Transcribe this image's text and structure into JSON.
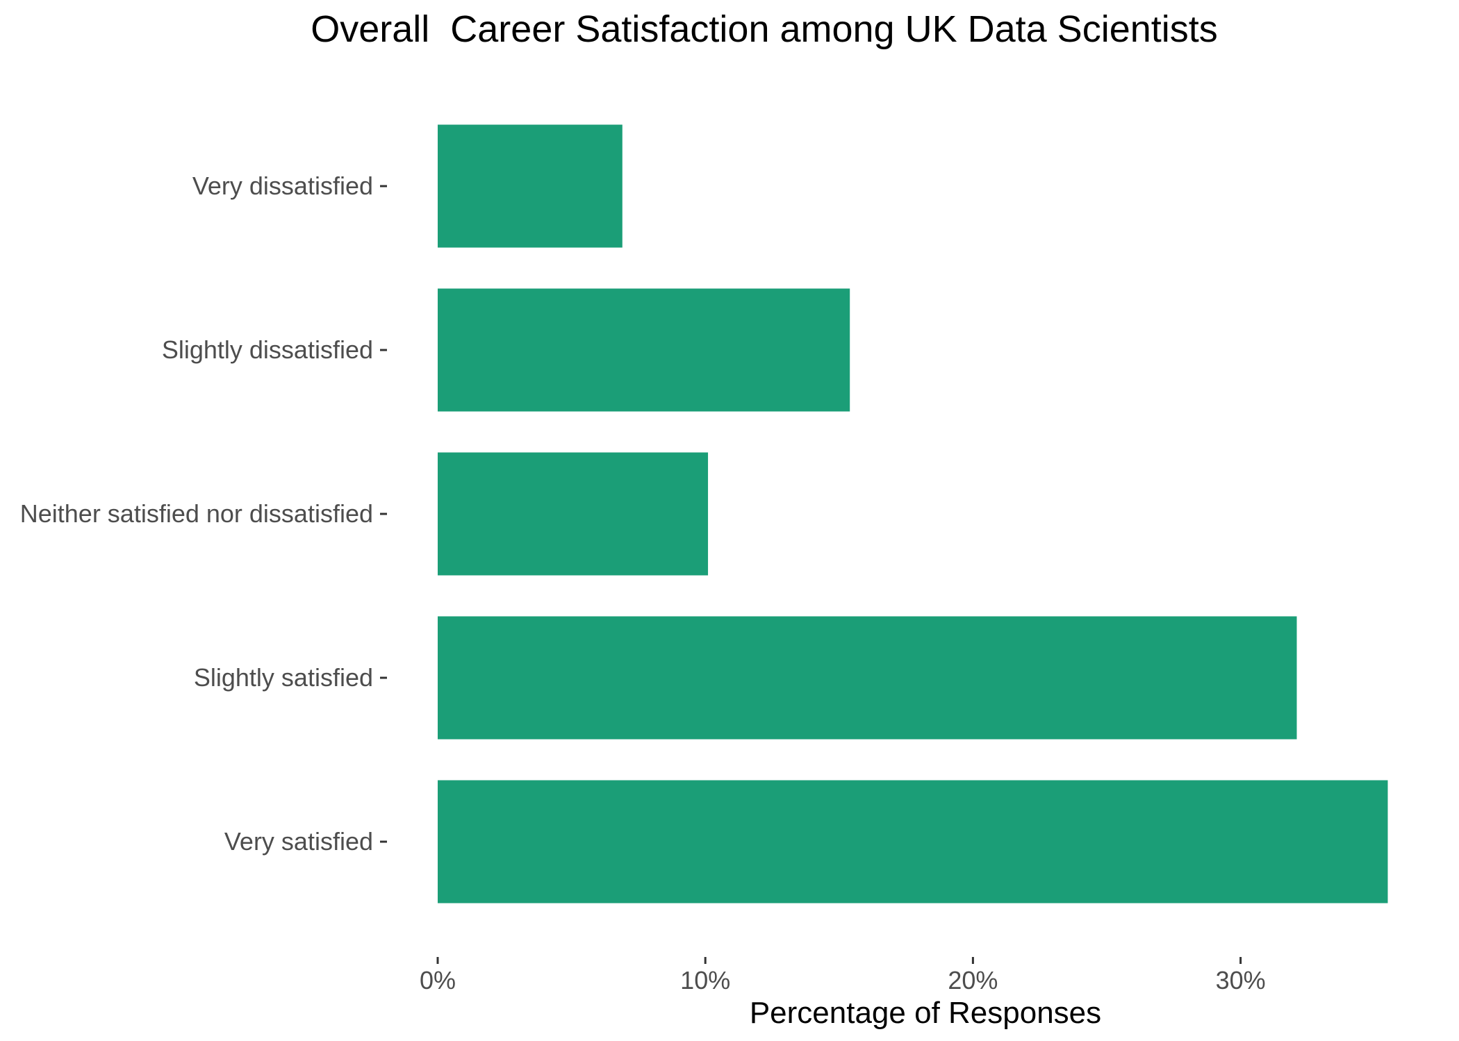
{
  "chart_data": {
    "type": "bar",
    "orientation": "horizontal",
    "title": "Overall  Career Satisfaction among UK Data Scientists",
    "xlabel": "Percentage of Responses",
    "ylabel": "",
    "categories": [
      "Very dissatisfied",
      "Slightly dissatisfied",
      "Neither satisfied nor dissatisfied",
      "Slightly satisfied",
      "Very satisfied"
    ],
    "values": [
      6.9,
      15.4,
      10.1,
      32.1,
      35.5
    ],
    "value_unit": "percent",
    "xlim": [
      0,
      36.5
    ],
    "xticks": [
      0,
      10,
      20,
      30
    ],
    "xtick_labels": [
      "0%",
      "10%",
      "20%",
      "30%"
    ],
    "bar_color": "#1b9e77",
    "grid": false,
    "legend": "none"
  }
}
